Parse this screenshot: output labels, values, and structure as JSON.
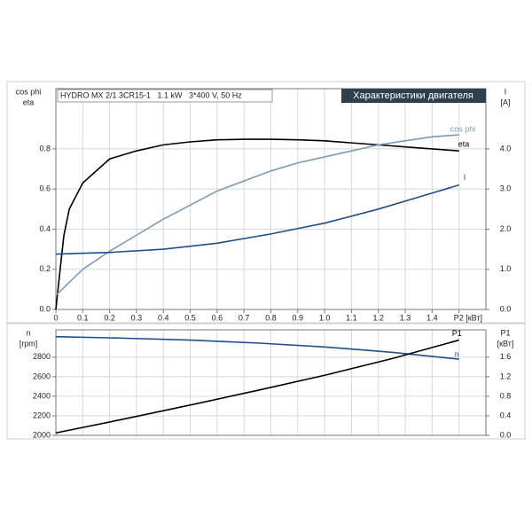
{
  "chart_data": [
    {
      "type": "line",
      "title": "Характеристики двигателя",
      "subtitle": "HYDRO MX 2/1 3CR15-1   1.1 kW   3*400 V, 50 Hz",
      "ylabel": [
        "cos phi",
        "eta"
      ],
      "y2label": [
        "I",
        "[A]"
      ],
      "xlim": [
        0,
        1.6
      ],
      "xticks": [
        0,
        0.1,
        0.2,
        0.3,
        0.4,
        0.5,
        0.6,
        0.7,
        0.8,
        0.9,
        {
          "value": 1,
          "label": "1.0"
        },
        1.1,
        1.2,
        1.3,
        1.4,
        {
          "value": 1.5,
          "label": "P2 [кВт]"
        }
      ],
      "ylim": [
        0,
        1.1
      ],
      "yticks": [
        {
          "value": 0,
          "label": "0.0"
        },
        0.2,
        0.4,
        0.6,
        0.8
      ],
      "y2lim": [
        0,
        5.5
      ],
      "y2ticks": [
        {
          "value": 0,
          "label": "0.0"
        },
        {
          "value": 1,
          "label": "1.0"
        },
        {
          "value": 2,
          "label": "2.0"
        },
        {
          "value": 3,
          "label": "3.0"
        },
        {
          "value": 4,
          "label": "4.0"
        }
      ],
      "grid": true,
      "series": [
        {
          "name": "eta",
          "color": "#000000",
          "x": [
            0,
            0.02,
            0.03,
            0.05,
            0.1,
            0.2,
            0.3,
            0.4,
            0.5,
            0.6,
            0.7,
            0.8,
            0.9,
            1.0,
            1.1,
            1.2,
            1.3,
            1.4,
            1.5
          ],
          "values": [
            0,
            0.25,
            0.37,
            0.5,
            0.63,
            0.75,
            0.79,
            0.82,
            0.835,
            0.845,
            0.848,
            0.848,
            0.845,
            0.84,
            0.83,
            0.82,
            0.81,
            0.8,
            0.79
          ]
        },
        {
          "name": "cos phi",
          "color": "#7b9bb5",
          "x": [
            0,
            0.1,
            0.2,
            0.3,
            0.4,
            0.5,
            0.6,
            0.7,
            0.8,
            0.9,
            1.0,
            1.1,
            1.2,
            1.3,
            1.4,
            1.5
          ],
          "values": [
            0.07,
            0.2,
            0.29,
            0.37,
            0.45,
            0.52,
            0.59,
            0.64,
            0.69,
            0.73,
            0.76,
            0.79,
            0.82,
            0.84,
            0.86,
            0.87
          ]
        },
        {
          "name": "I",
          "color": "#1f4e8c",
          "axis": "y2",
          "x": [
            0,
            0.2,
            0.4,
            0.6,
            0.8,
            1.0,
            1.2,
            1.4,
            1.5
          ],
          "values": [
            1.38,
            1.42,
            1.5,
            1.65,
            1.88,
            2.15,
            2.5,
            2.9,
            3.1
          ]
        }
      ]
    },
    {
      "type": "line",
      "ylabel": [
        "n",
        "[rpm]"
      ],
      "y2label": [
        "P1",
        "[кВт]"
      ],
      "xlim": [
        0,
        1.6
      ],
      "ylim": [
        2000,
        3080
      ],
      "yticks": [
        2000,
        2200,
        2400,
        2600,
        2800
      ],
      "y2lim": [
        0,
        2.16
      ],
      "y2ticks": [
        {
          "value": 0,
          "label": "0.0"
        },
        0.4,
        0.8,
        1.2,
        1.6
      ],
      "grid": true,
      "series": [
        {
          "name": "n",
          "color": "#1f4e8c",
          "x": [
            0,
            0.25,
            0.5,
            0.75,
            1.0,
            1.25,
            1.5
          ],
          "values": [
            3010,
            2995,
            2975,
            2945,
            2905,
            2850,
            2780
          ]
        },
        {
          "name": "P1",
          "color": "#000000",
          "axis": "y2",
          "x": [
            0,
            0.25,
            0.5,
            0.75,
            1.0,
            1.25,
            1.5
          ],
          "values": [
            0.05,
            0.33,
            0.62,
            0.92,
            1.23,
            1.57,
            1.95
          ]
        }
      ]
    }
  ]
}
